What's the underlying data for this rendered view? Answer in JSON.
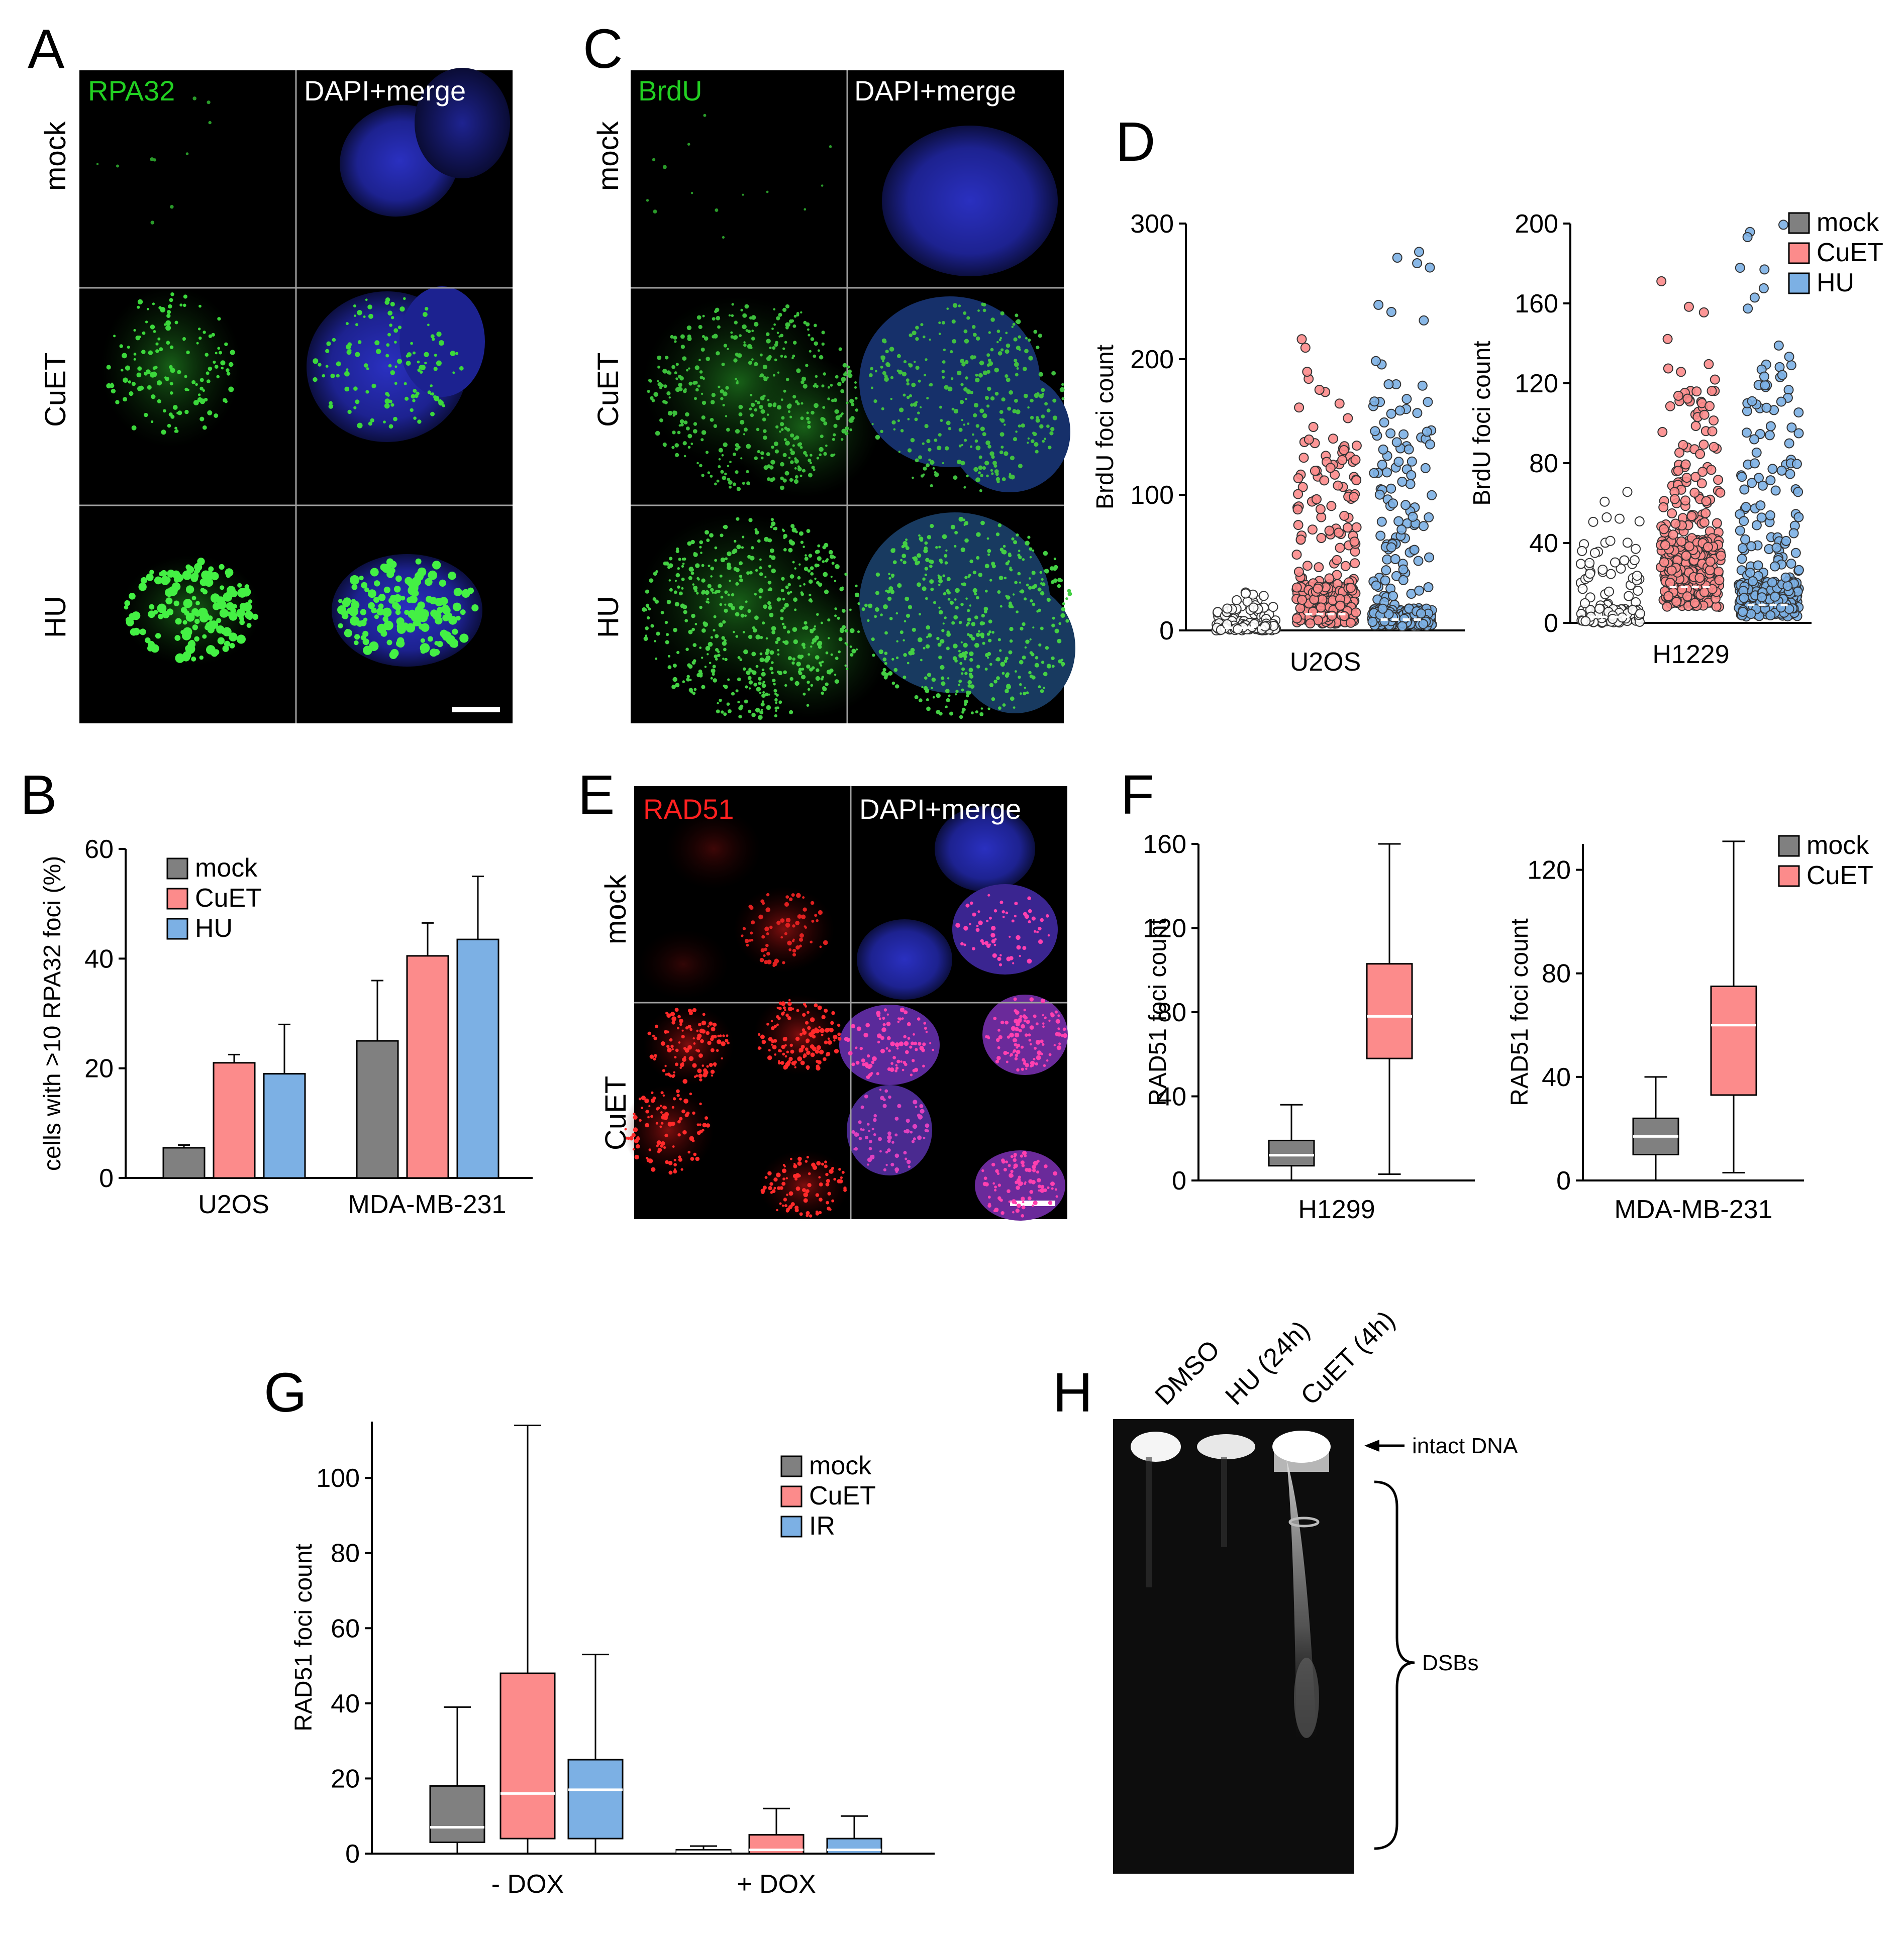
{
  "panels": {
    "A": {
      "letter": "A",
      "columns": [
        "RPA32",
        "DAPI+merge"
      ],
      "rows": [
        "mock",
        "CuET",
        "HU"
      ]
    },
    "C": {
      "letter": "C",
      "columns": [
        "BrdU",
        "DAPI+merge"
      ],
      "rows": [
        "mock",
        "CuET",
        "HU"
      ]
    },
    "E": {
      "letter": "E",
      "columns": [
        "RAD51",
        "DAPI+merge"
      ],
      "rows": [
        "mock",
        "CuET"
      ]
    },
    "B": {
      "letter": "B"
    },
    "D": {
      "letter": "D"
    },
    "F": {
      "letter": "F"
    },
    "G": {
      "letter": "G"
    },
    "H": {
      "letter": "H",
      "lanes": [
        "DMSO",
        "HU (24h)",
        "CuET (4h)"
      ],
      "annotations": {
        "intact": "intact DNA",
        "dsbs": "DSBs"
      }
    }
  },
  "colors": {
    "mock": "#808080",
    "cuet": "#fc8b8b",
    "hu": "#7cb0e4",
    "green_label": "#22d022",
    "red_label": "#ff2020",
    "dapi_blue": "#1a1fa0"
  },
  "chart_data": [
    {
      "id": "B",
      "type": "bar",
      "ylabel": "cells with >10 RPA32 foci (%)",
      "ylim": [
        0,
        60
      ],
      "yticks": [
        0,
        20,
        40,
        60
      ],
      "categories": [
        "U2OS",
        "MDA-MB-231"
      ],
      "series": [
        {
          "name": "mock",
          "values": [
            5.5,
            25
          ],
          "errors": [
            0.5,
            11
          ]
        },
        {
          "name": "CuET",
          "values": [
            21,
            40.5
          ],
          "errors": [
            1.5,
            6
          ]
        },
        {
          "name": "HU",
          "values": [
            19,
            43.5
          ],
          "errors": [
            9,
            11.5
          ]
        }
      ],
      "legend": "top-left"
    },
    {
      "id": "D-U2OS",
      "type": "scatter",
      "ylabel": "BrdU foci count",
      "xlabel": "U2OS",
      "ylim": [
        0,
        300
      ],
      "yticks": [
        0,
        100,
        200,
        300
      ],
      "groups": [
        {
          "name": "mock",
          "q1": 0,
          "median": 2,
          "q3": 4,
          "max": 28
        },
        {
          "name": "CuET",
          "q1": 5,
          "median": 12,
          "q3": 28,
          "max": 220
        },
        {
          "name": "HU",
          "q1": 3,
          "median": 8,
          "q3": 14,
          "max": 298
        }
      ]
    },
    {
      "id": "D-H1229",
      "type": "scatter",
      "ylabel": "BrdU foci count",
      "xlabel": "H1229",
      "ylim": [
        0,
        200
      ],
      "yticks": [
        0,
        40,
        80,
        120,
        160,
        200
      ],
      "groups": [
        {
          "name": "mock",
          "q1": 0,
          "median": 3,
          "q3": 6,
          "max": 66
        },
        {
          "name": "CuET",
          "q1": 8,
          "median": 18,
          "q3": 36,
          "max": 176
        },
        {
          "name": "HU",
          "q1": 3,
          "median": 9,
          "q3": 18,
          "max": 204
        }
      ],
      "legend": [
        "mock",
        "CuET",
        "HU"
      ]
    },
    {
      "id": "F-H1299",
      "type": "box",
      "ylabel": "RAD51 foci count",
      "xlabel": "H1299",
      "ylim": [
        0,
        160
      ],
      "yticks": [
        0,
        40,
        80,
        120,
        160
      ],
      "boxes": [
        {
          "name": "mock",
          "min": 0,
          "q1": 7,
          "median": 12,
          "q3": 19,
          "max": 36
        },
        {
          "name": "CuET",
          "min": 3,
          "q1": 58,
          "median": 78,
          "q3": 103,
          "max": 160
        }
      ]
    },
    {
      "id": "F-MDA",
      "type": "box",
      "ylabel": "RAD51 foci count",
      "xlabel": "MDA-MB-231",
      "ylim": [
        0,
        130
      ],
      "yticks": [
        0,
        40,
        80,
        120
      ],
      "boxes": [
        {
          "name": "mock",
          "min": 0,
          "q1": 10,
          "median": 17,
          "q3": 24,
          "max": 40
        },
        {
          "name": "CuET",
          "min": 3,
          "q1": 33,
          "median": 60,
          "q3": 75,
          "max": 131
        }
      ],
      "legend": [
        "mock",
        "CuET"
      ]
    },
    {
      "id": "G",
      "type": "box",
      "ylabel": "RAD51 foci count",
      "ylim": [
        0,
        115
      ],
      "yticks": [
        0,
        20,
        40,
        60,
        80,
        100
      ],
      "categories": [
        "- DOX",
        "+ DOX"
      ],
      "boxes": [
        {
          "name": "mock",
          "group": 0,
          "min": 0,
          "q1": 3,
          "median": 7,
          "q3": 18,
          "max": 39
        },
        {
          "name": "CuET",
          "group": 0,
          "min": 0,
          "q1": 4,
          "median": 16,
          "q3": 48,
          "max": 114
        },
        {
          "name": "IR",
          "group": 0,
          "min": 0,
          "q1": 4,
          "median": 17,
          "q3": 25,
          "max": 53
        },
        {
          "name": "mock",
          "group": 1,
          "min": 0,
          "q1": 0,
          "median": 0.5,
          "q3": 1,
          "max": 2
        },
        {
          "name": "CuET",
          "group": 1,
          "min": 0,
          "q1": 0,
          "median": 1,
          "q3": 5,
          "max": 12
        },
        {
          "name": "IR",
          "group": 1,
          "min": 0,
          "q1": 0,
          "median": 1,
          "q3": 4,
          "max": 10
        }
      ],
      "legend": [
        "mock",
        "CuET",
        "IR"
      ]
    }
  ]
}
